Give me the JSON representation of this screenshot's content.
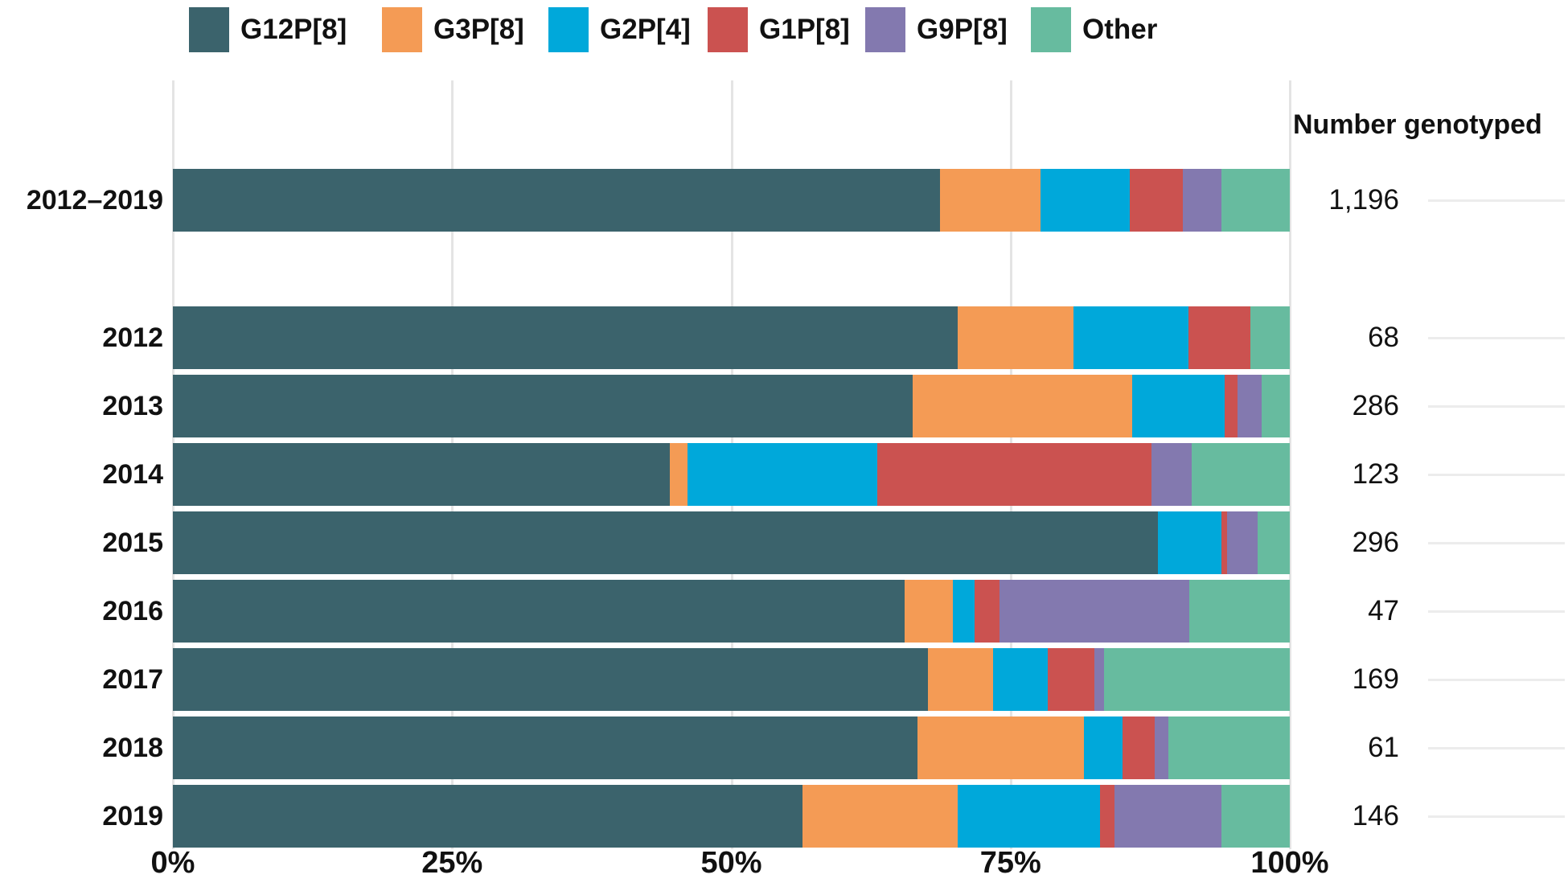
{
  "figure": {
    "right_column_header": "Number genotyped"
  },
  "chart_data": {
    "type": "bar",
    "variant": "horizontal-stacked-100percent",
    "title": "",
    "xlabel": "",
    "ylabel": "",
    "xlim": [
      0,
      100
    ],
    "grid": "vertical",
    "legend_position": "top",
    "x_ticks": [
      {
        "value": 0,
        "label": "0%"
      },
      {
        "value": 25,
        "label": "25%"
      },
      {
        "value": 50,
        "label": "50%"
      },
      {
        "value": 75,
        "label": "75%"
      },
      {
        "value": 100,
        "label": "100%"
      }
    ],
    "series": [
      {
        "name": "G12P[8]",
        "color": "#3b636c"
      },
      {
        "name": "G3P[8]",
        "color": "#f49b55"
      },
      {
        "name": "G2P[4]",
        "color": "#00a8da"
      },
      {
        "name": "G1P[8]",
        "color": "#cb5250"
      },
      {
        "name": "G9P[8]",
        "color": "#8379af"
      },
      {
        "name": "Other",
        "color": "#67bb9f"
      }
    ],
    "right_column_header": "Number genotyped",
    "rows": [
      {
        "label": "2012–2019",
        "count": "1,196",
        "group": "summary",
        "values": [
          68.7,
          9.0,
          8.0,
          4.7,
          3.5,
          6.1
        ]
      },
      {
        "label": "2012",
        "count": "68",
        "group": "year",
        "values": [
          70.3,
          10.3,
          10.3,
          5.6,
          0.0,
          3.5
        ]
      },
      {
        "label": "2013",
        "count": "286",
        "group": "year",
        "values": [
          66.2,
          19.7,
          8.3,
          1.1,
          2.2,
          2.5
        ]
      },
      {
        "label": "2014",
        "count": "123",
        "group": "year",
        "values": [
          44.5,
          1.6,
          17.0,
          24.5,
          3.6,
          8.8
        ]
      },
      {
        "label": "2015",
        "count": "296",
        "group": "year",
        "values": [
          88.2,
          0.0,
          5.7,
          0.5,
          2.7,
          2.9
        ]
      },
      {
        "label": "2016",
        "count": "47",
        "group": "year",
        "values": [
          65.5,
          4.3,
          2.0,
          2.2,
          17.0,
          9.0
        ]
      },
      {
        "label": "2017",
        "count": "169",
        "group": "year",
        "values": [
          67.6,
          5.8,
          4.9,
          4.2,
          0.9,
          16.6
        ]
      },
      {
        "label": "2018",
        "count": "61",
        "group": "year",
        "values": [
          66.7,
          14.9,
          3.4,
          2.9,
          1.2,
          10.9
        ]
      },
      {
        "label": "2019",
        "count": "146",
        "group": "year",
        "values": [
          56.4,
          13.9,
          12.7,
          1.3,
          9.6,
          6.1
        ]
      }
    ]
  }
}
